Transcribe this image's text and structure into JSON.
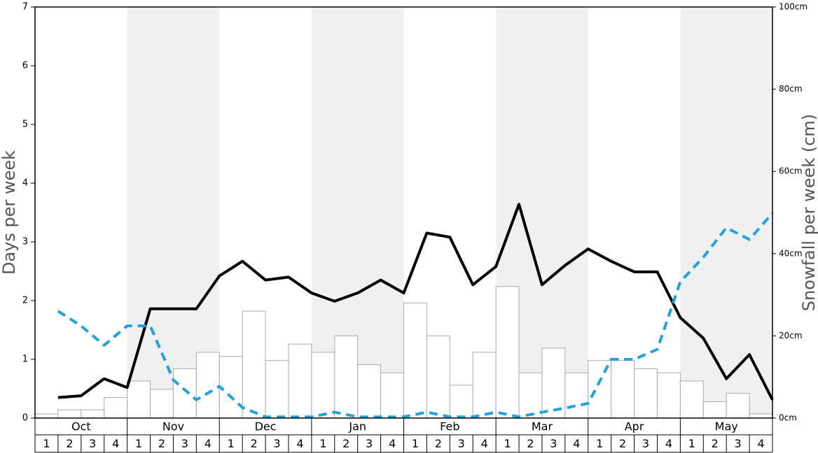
{
  "chart_data": {
    "type": "bar-line",
    "ylabel": "Days per week",
    "y2label": "Snowfall per week (cm)",
    "groups": [
      "Oct",
      "Nov",
      "Dec",
      "Jan",
      "Feb",
      "Mar",
      "Apr",
      "May"
    ],
    "categories": [
      "1",
      "2",
      "3",
      "4",
      "1",
      "2",
      "3",
      "4",
      "1",
      "2",
      "3",
      "4",
      "1",
      "2",
      "3",
      "4",
      "1",
      "2",
      "3",
      "4",
      "1",
      "2",
      "3",
      "4",
      "1",
      "2",
      "3",
      "4",
      "1",
      "2",
      "3",
      "4"
    ],
    "ylim": [
      0,
      7
    ],
    "yticks": [
      0,
      1,
      2,
      3,
      4,
      5,
      6,
      7
    ],
    "y2lim": [
      0,
      100
    ],
    "y2ticks": [
      {
        "value": 0,
        "label": "0cm"
      },
      {
        "value": 20,
        "label": "20cm"
      },
      {
        "value": 40,
        "label": "40cm"
      },
      {
        "value": 60,
        "label": "60cm"
      },
      {
        "value": 80,
        "label": "80cm"
      },
      {
        "value": 100,
        "label": "100cm"
      }
    ],
    "band_color": "#f0f0f0",
    "series": [
      {
        "kind": "bar",
        "axis": "y2",
        "color": "#ffffff",
        "values": [
          1,
          2,
          2,
          5,
          9,
          7,
          12,
          16,
          15,
          26,
          14,
          18,
          16,
          20,
          13,
          11,
          28,
          20,
          8,
          16,
          32,
          11,
          17,
          11,
          14,
          14,
          12,
          11,
          9,
          4,
          6,
          1
        ]
      },
      {
        "kind": "line",
        "color": "#000000",
        "values": [
          0.35,
          0.38,
          0.67,
          0.52,
          1.86,
          1.86,
          1.86,
          2.42,
          2.67,
          2.35,
          2.4,
          2.13,
          1.99,
          2.13,
          2.35,
          2.13,
          3.15,
          3.08,
          2.27,
          2.58,
          3.64,
          2.27,
          2.6,
          2.88,
          2.67,
          2.49,
          2.49,
          1.71,
          1.36,
          0.67,
          1.08,
          0.31
        ]
      },
      {
        "kind": "line",
        "dashed": true,
        "color": "#1fa3e0",
        "values": [
          1.82,
          1.57,
          1.24,
          1.57,
          1.57,
          0.65,
          0.31,
          0.54,
          0.18,
          0.02,
          0.02,
          0.02,
          0.1,
          0.02,
          0.02,
          0.02,
          0.1,
          0.02,
          0.02,
          0.1,
          0.02,
          0.1,
          0.17,
          0.25,
          1.0,
          1.0,
          1.17,
          2.32,
          2.74,
          3.24,
          3.04,
          3.49
        ]
      }
    ]
  }
}
